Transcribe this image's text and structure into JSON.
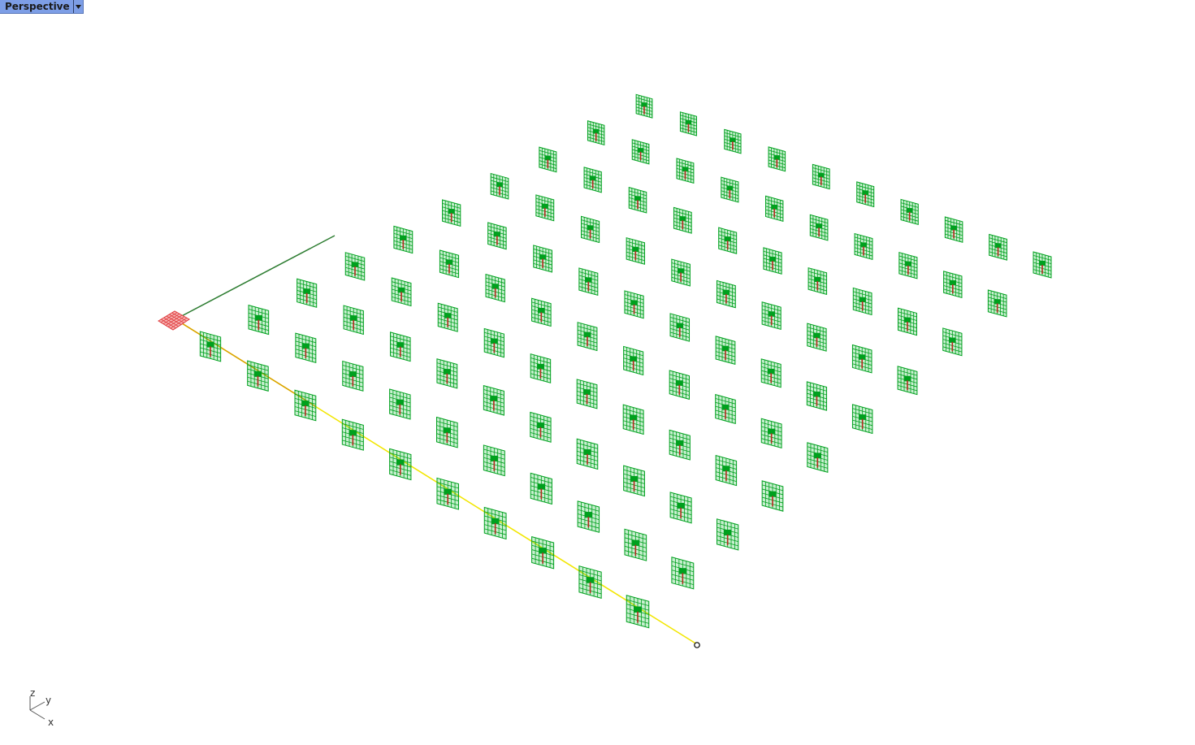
{
  "viewport": {
    "title": "Perspective",
    "menu_icon": "triangle-down-icon"
  },
  "scene": {
    "object_icon": "mesh-panel-icon",
    "grid_rows": 10,
    "grid_cols": 10,
    "panel_color": "#00a01e",
    "panel_fill": "#1fbf3f",
    "stem_color": "#b4281e",
    "selected_color": "#e0393b",
    "path_color": "#f2e600",
    "guide_color": "#2e7d32"
  },
  "axis_widget": {
    "z_label": "z",
    "y_label": "y",
    "x_label": "x"
  }
}
